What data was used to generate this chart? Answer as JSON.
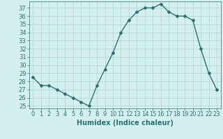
{
  "x": [
    0,
    1,
    2,
    3,
    4,
    5,
    6,
    7,
    8,
    9,
    10,
    11,
    12,
    13,
    14,
    15,
    16,
    17,
    18,
    19,
    20,
    21,
    22,
    23
  ],
  "y": [
    28.5,
    27.5,
    27.5,
    27.0,
    26.5,
    26.0,
    25.5,
    25.0,
    27.5,
    29.5,
    31.5,
    34.0,
    35.5,
    36.5,
    37.0,
    37.0,
    37.5,
    36.5,
    36.0,
    36.0,
    35.5,
    32.0,
    29.0,
    27.0
  ],
  "xlabel": "Humidex (Indice chaleur)",
  "xlim": [
    -0.5,
    23.5
  ],
  "ylim": [
    24.7,
    37.8
  ],
  "yticks": [
    25,
    26,
    27,
    28,
    29,
    30,
    31,
    32,
    33,
    34,
    35,
    36,
    37
  ],
  "xticks": [
    0,
    1,
    2,
    3,
    4,
    5,
    6,
    7,
    8,
    9,
    10,
    11,
    12,
    13,
    14,
    15,
    16,
    17,
    18,
    19,
    20,
    21,
    22,
    23
  ],
  "line_color": "#2d7070",
  "bg_color": "#d4f0ee",
  "grid_color": "#aad4d0",
  "marker": "D",
  "marker_size": 2,
  "line_width": 1.0,
  "tick_fontsize": 6,
  "xlabel_fontsize": 7
}
